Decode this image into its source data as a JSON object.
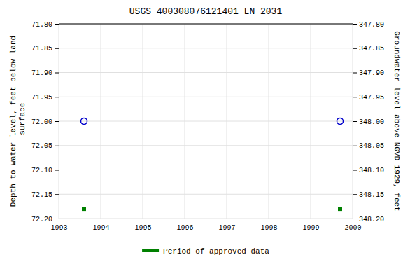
{
  "chart_data": {
    "type": "scatter",
    "title": "USGS 400308076121401 LN  2031",
    "y_label": "Depth to water level, feet below land\n surface",
    "y2_label": "Groundwater level above NGVD 1929, feet",
    "x": [
      1993.6,
      1999.7
    ],
    "series": [
      {
        "color": "#0000cc",
        "marker": "circle",
        "values": [
          72.0,
          72.0
        ]
      },
      {
        "name": "Period of approved data",
        "color": "#008000",
        "marker": "square",
        "values": [
          72.18,
          72.18
        ]
      }
    ],
    "xlim": [
      1993.0,
      2000.0
    ],
    "xticks": [
      1993,
      1994,
      1995,
      1996,
      1997,
      1998,
      1999,
      2000
    ],
    "ylim": [
      72.2,
      71.8
    ],
    "yticks": [
      {
        "value": 71.8,
        "label": "71.80"
      },
      {
        "value": 71.85,
        "label": "71.85"
      },
      {
        "value": 71.9,
        "label": "71.90"
      },
      {
        "value": 71.95,
        "label": "71.95"
      },
      {
        "value": 72.0,
        "label": "72.00"
      },
      {
        "value": 72.05,
        "label": "72.05"
      },
      {
        "value": 72.1,
        "label": "72.10"
      },
      {
        "value": 72.15,
        "label": "72.15"
      },
      {
        "value": 72.2,
        "label": "72.20"
      }
    ],
    "y2lim": [
      348.2,
      347.8
    ],
    "y2ticks": [
      {
        "value": 348.2,
        "label": "348.20"
      },
      {
        "value": 348.15,
        "label": "348.15"
      },
      {
        "value": 348.1,
        "label": "348.10"
      },
      {
        "value": 348.05,
        "label": "348.05"
      },
      {
        "value": 348.0,
        "label": "348.00"
      },
      {
        "value": 347.95,
        "label": "347.95"
      },
      {
        "value": 347.9,
        "label": "347.90"
      },
      {
        "value": 347.85,
        "label": "347.85"
      },
      {
        "value": 347.8,
        "label": "347.80"
      }
    ],
    "grid": true,
    "legend": "bottom"
  }
}
